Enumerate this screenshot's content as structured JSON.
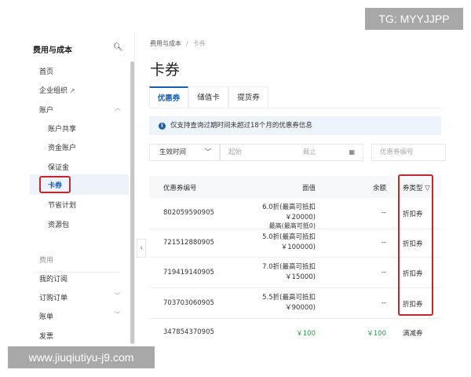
{
  "overlays": {
    "tg": "TG: MYYJJPP",
    "url": "www.jiuqiutiyu-j9.com"
  },
  "sidebar": {
    "title": "费用与成本",
    "items": [
      {
        "label": "首页"
      },
      {
        "label": "企业组织",
        "icon": "external-link-icon"
      },
      {
        "label": "账户",
        "expanded": true
      },
      {
        "label": "账户共享"
      },
      {
        "label": "资金账户"
      },
      {
        "label": "保证金"
      },
      {
        "label": "卡券",
        "active": true
      },
      {
        "label": "节省计划"
      },
      {
        "label": "资源包"
      },
      {
        "label": "费用"
      },
      {
        "label": "我的订阅"
      },
      {
        "label": "订购订单"
      },
      {
        "label": "账单"
      },
      {
        "label": "发票"
      }
    ]
  },
  "breadcrumb": [
    "费用与成本",
    "/",
    "卡券"
  ],
  "page_title": "卡券",
  "tabs": [
    {
      "label": "优惠券",
      "active": true
    },
    {
      "label": "储值卡"
    },
    {
      "label": "提货券"
    }
  ],
  "notice": "仅支持查询过期时间未超过18个月的优惠券信息",
  "filters": {
    "time_select": "生效时间",
    "start_placeholder": "起始",
    "end_placeholder": "截止",
    "coupon_placeholder": "优惠券编号"
  },
  "table": {
    "headers": [
      "优惠券编号",
      "面值",
      "余额",
      "券类型"
    ],
    "rows": [
      {
        "id": "802059590905",
        "value1": "6.0折(最高可抵扣",
        "value2": "￥20000)",
        "balance": "--",
        "type": "折扣券"
      },
      {
        "id": "721512880905",
        "value0": "最高(最高可抵0)",
        "value1": "5.0折(最高可抵扣",
        "value2": "￥100000)",
        "balance": "--",
        "type": "折扣券"
      },
      {
        "id": "719419140905",
        "value1": "7.0折(最高可抵扣",
        "value2": "￥15000)",
        "balance": "--",
        "type": "折扣券"
      },
      {
        "id": "703703060905",
        "value1": "5.5折(最高可抵扣",
        "value2": "￥90000)",
        "balance": "--",
        "type": "折扣券"
      },
      {
        "id": "347854370905",
        "value1": "￥100",
        "balance": "￥100",
        "type": "满减券"
      }
    ]
  },
  "colors": {
    "accent": "#1b5fb3",
    "highlight": "#c0282d",
    "positive": "#2a9d4a"
  }
}
